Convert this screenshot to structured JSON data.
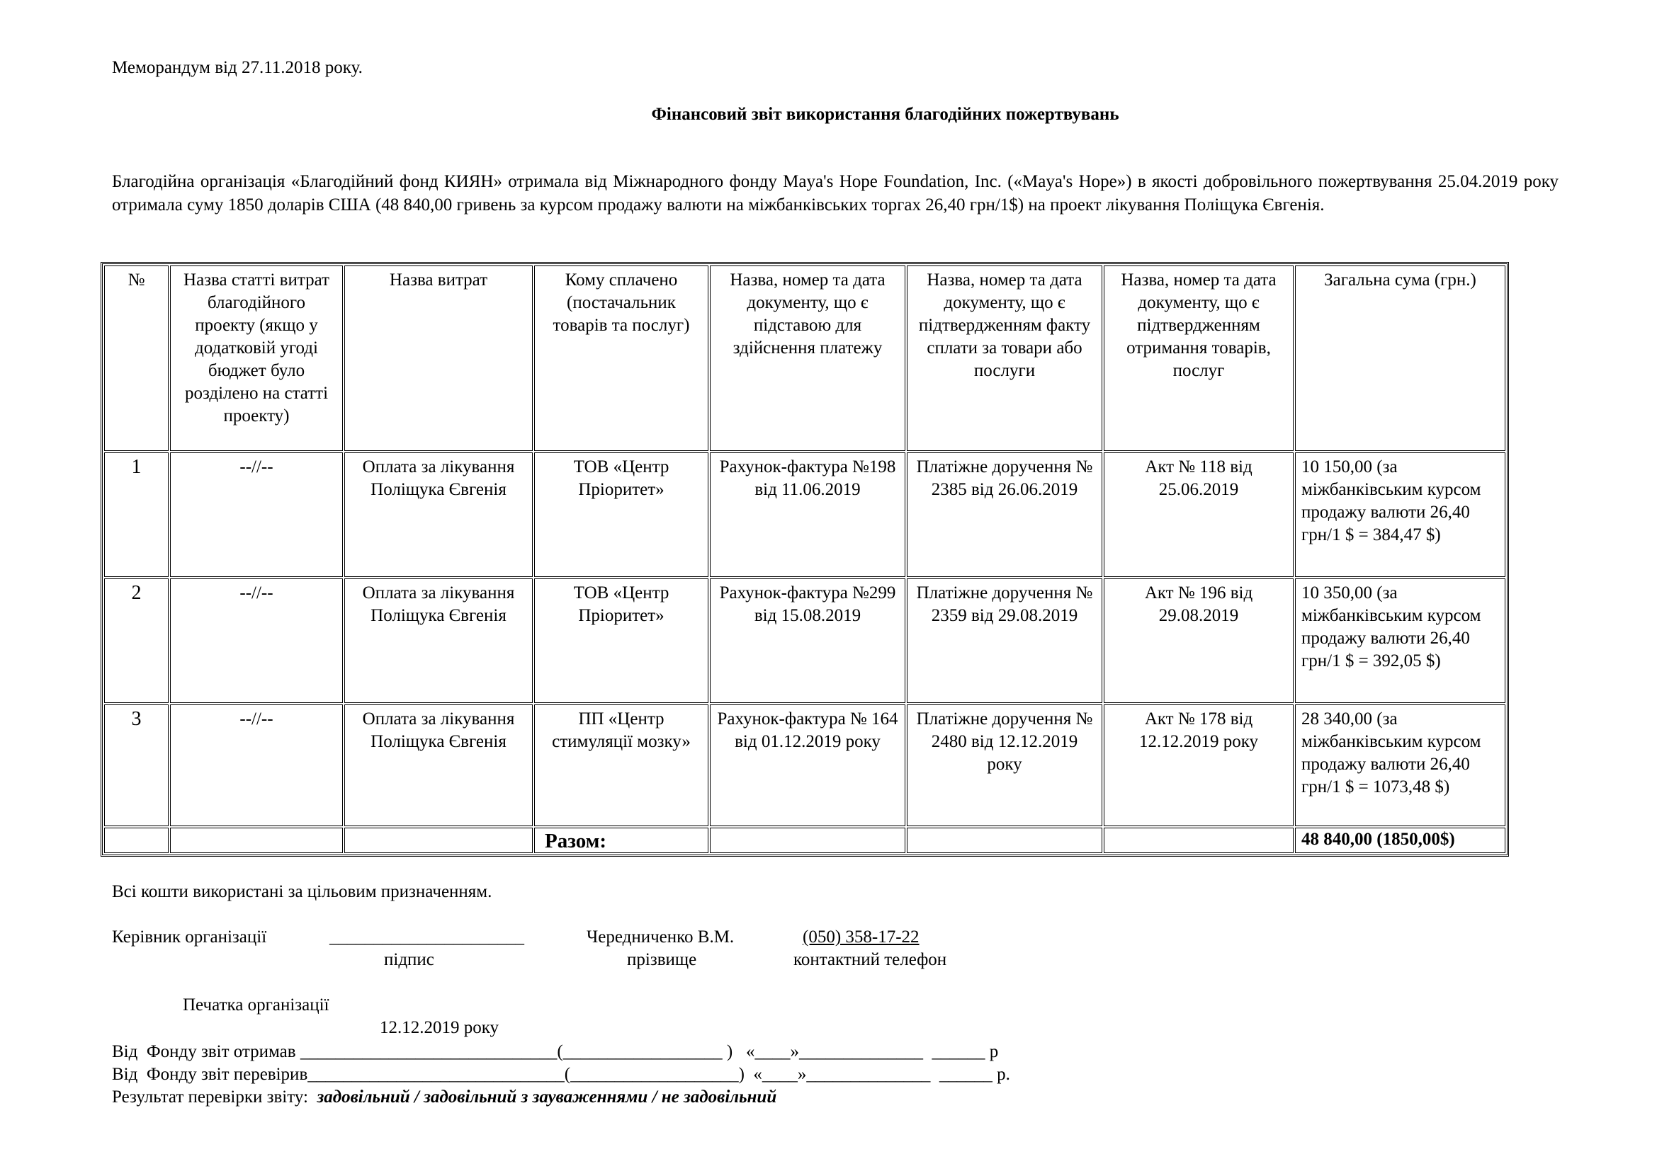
{
  "header": {
    "memo": "Меморандум від 27.11.2018 року.",
    "title": "Фінансовий звіт використання благодійних пожертвувань",
    "intro": "Благодійна організація «Благодійний фонд КИЯН» отримала від Міжнародного  фонду Maya's Hope Foundation, Inc. («Maya's Hope»)  в якості добровільного пожертвування  25.04.2019 року отримала суму 1850 доларів США (48 840,00  гривень за курсом продажу валюти на міжбанківських торгах 26,40 грн/1$) на проект лікування Поліщука Євгенія."
  },
  "table": {
    "columns": [
      "№",
      "Назва статті витрат благодійного проекту (якщо у додатковій угоді бюджет було розділено на статті проекту)",
      "Назва  витрат",
      "Кому сплачено (постачальник товарів та послуг)",
      "Назва, номер та дата документу, що є підставою для здійснення платежу",
      "Назва, номер та дата документу, що є підтвердженням факту сплати за товари або послуги",
      "Назва, номер та дата документу, що є підтвердженням отримання товарів, послуг",
      "Загальна сума (грн.)"
    ],
    "rows": [
      [
        "1",
        "--//--",
        "Оплата за лікування Поліщука Євгенія",
        "ТОВ «Центр Пріоритет»",
        "Рахунок-фактура №198 від 11.06.2019",
        "Платіжне доручення № 2385 від 26.06.2019",
        "Акт № 118 від 25.06.2019",
        "10 150,00 (за міжбанківським курсом продажу валюти  26,40 грн/1 $ = 384,47 $)"
      ],
      [
        "2",
        "--//--",
        "Оплата за лікування Поліщука Євгенія",
        "ТОВ «Центр Пріоритет»",
        "Рахунок-фактура №299 від 15.08.2019",
        "Платіжне доручення № 2359 від 29.08.2019",
        "Акт № 196 від 29.08.2019",
        "10 350,00 (за міжбанківським курсом продажу валюти  26,40 грн/1 $ = 392,05 $)"
      ],
      [
        "3",
        "--//--",
        "Оплата за лікування Поліщука Євгенія",
        "ПП «Центр стимуляції мозку»",
        "Рахунок-фактура № 164 від 01.12.2019 року",
        "Платіжне доручення № 2480 від 12.12.2019 року",
        "Акт № 178 від 12.12.2019 року",
        "28 340,00 (за міжбанківським курсом продажу валюти  26,40 грн/1 $ = 1073,48 $)"
      ]
    ],
    "total_label": "Разом:",
    "total_value": "48 840,00 (1850,00$)"
  },
  "footer": {
    "used": "Всі кошти використані за цільовим призначенням.",
    "head_label": "Керівник організації",
    "signature_line": "______________________",
    "name": "Чередниченко В.М.",
    "phone": "(050) 358-17-22",
    "cap_signature": "підпис",
    "cap_name": "прізвище",
    "cap_phone": "контактний телефон",
    "stamp": "Печатка організації",
    "date": "12.12.2019 року",
    "received": "Від  Фонду звіт отримав _____________________________(__________________ )   «____»______________  ______ р",
    "checked": "Від  Фонду звіт перевірив_____________________________(___________________)  «____»______________  ______ р.",
    "result_label": "Результат перевірки звіту:",
    "result_options": "задовільний / задовільний з зауваженнями / не задовільний"
  }
}
